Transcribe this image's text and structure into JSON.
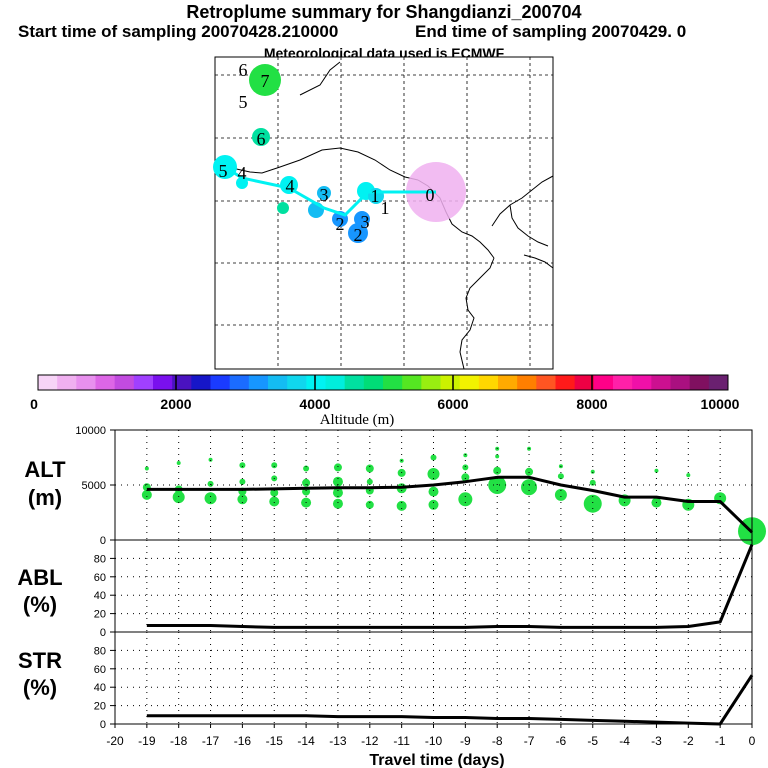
{
  "header": {
    "title": "Retroplume summary for Shangdianzi_200704",
    "start_text": "Start time of sampling 20070428.210000",
    "end_text": "End time of sampling 20070429.     0",
    "met_text": "Meteorological data used is ECMWF"
  },
  "map": {
    "trajectory_labels": [
      "0",
      "1",
      "1",
      "2",
      "2",
      "3",
      "3",
      "4",
      "4",
      "5",
      "5",
      "6",
      "6",
      "7"
    ],
    "altitude_label": "Altitude  (m)"
  },
  "colorbar": {
    "colors": [
      "#f7d4f7",
      "#f0b0f0",
      "#e890ee",
      "#dd66e6",
      "#c24be0",
      "#a040ff",
      "#7a10ee",
      "#4a12c0",
      "#1616c8",
      "#1a3bff",
      "#1b6cff",
      "#1796ff",
      "#14bcf3",
      "#10d7ee",
      "#00f2f2",
      "#00eedd",
      "#00e0a0",
      "#00dd77",
      "#22e044",
      "#55e622",
      "#99ee11",
      "#ccf200",
      "#f2f200",
      "#ffd700",
      "#ffaa00",
      "#ff7f00",
      "#ff5522",
      "#ff1a1a",
      "#ee0044",
      "#ff0088",
      "#ff20a8",
      "#f010a8",
      "#cc1090",
      "#aa1080",
      "#801060",
      "#6a2070"
    ],
    "ticks": [
      "0",
      "2000",
      "4000",
      "6000",
      "8000",
      "10000"
    ]
  },
  "chart_data": [
    {
      "type": "line",
      "name": "ALT",
      "title": "",
      "ylabel": "ALT\n(m)",
      "ylabel_line1": "ALT",
      "ylabel_line2": "(m)",
      "xlabel": "Travel time (days)",
      "xlim": [
        -20,
        0
      ],
      "ylim": [
        0,
        10000
      ],
      "yticks": [
        "0",
        "5000",
        "10000"
      ],
      "x": [
        -19,
        -18,
        -17,
        -16,
        -15,
        -14,
        -13,
        -12,
        -11,
        -10,
        -9,
        -8,
        -7,
        -6,
        -5,
        -4,
        -3,
        -2,
        -1,
        0
      ],
      "values": [
        4600,
        4600,
        4600,
        4600,
        4650,
        4700,
        4750,
        4750,
        4800,
        5000,
        5300,
        5700,
        5700,
        5000,
        4500,
        3900,
        3900,
        3500,
        3500,
        700
      ]
    },
    {
      "type": "line",
      "name": "ABL",
      "ylabel": "ABL\n(%)",
      "ylabel_line1": "ABL",
      "ylabel_line2": "(%)",
      "xlim": [
        -20,
        0
      ],
      "ylim": [
        0,
        100
      ],
      "yticks": [
        "0",
        "20",
        "40",
        "60",
        "80"
      ],
      "x": [
        -19,
        -18,
        -17,
        -16,
        -15,
        -14,
        -13,
        -12,
        -11,
        -10,
        -9,
        -8,
        -7,
        -6,
        -5,
        -4,
        -3,
        -2,
        -1,
        0
      ],
      "values": [
        7,
        7,
        7,
        6,
        5,
        5,
        5,
        5,
        5,
        5,
        5,
        6,
        6,
        5,
        5,
        5,
        5,
        6,
        11,
        95
      ]
    },
    {
      "type": "line",
      "name": "STR",
      "ylabel": "STR\n(%)",
      "ylabel_line1": "STR",
      "ylabel_line2": "(%)",
      "xlim": [
        -20,
        0
      ],
      "ylim": [
        0,
        100
      ],
      "yticks": [
        "0",
        "20",
        "40",
        "60",
        "80"
      ],
      "xticks": [
        "-20",
        "-19",
        "-18",
        "-17",
        "-16",
        "-15",
        "-14",
        "-13",
        "-12",
        "-11",
        "-10",
        "-9",
        "-8",
        "-7",
        "-6",
        "-5",
        "-4",
        "-3",
        "-2",
        "-1",
        "0"
      ],
      "x": [
        -19,
        -18,
        -17,
        -16,
        -15,
        -14,
        -13,
        -12,
        -11,
        -10,
        -9,
        -8,
        -7,
        -6,
        -5,
        -4,
        -3,
        -2,
        -1,
        0
      ],
      "values": [
        9,
        9,
        9,
        9,
        9,
        9,
        8,
        8,
        8,
        7,
        7,
        6,
        6,
        5,
        4,
        3,
        2,
        1,
        0,
        53
      ]
    }
  ]
}
